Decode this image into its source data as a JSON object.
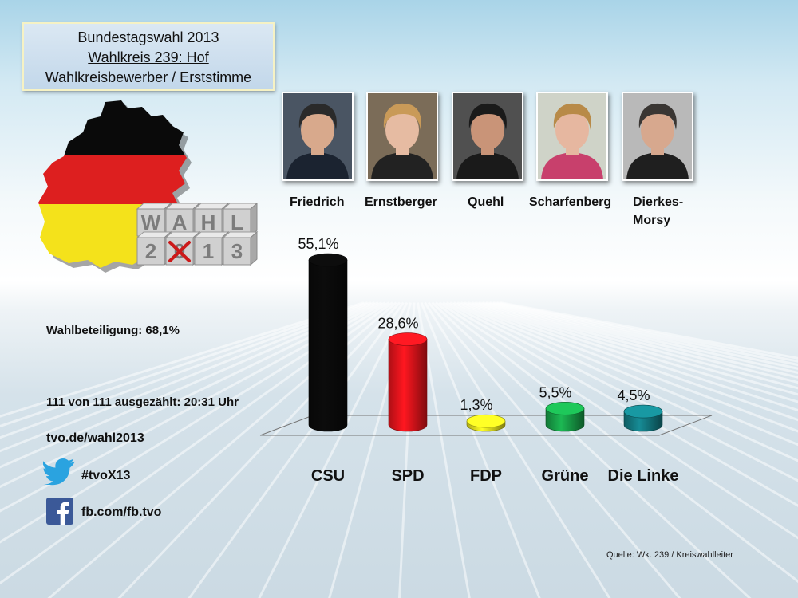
{
  "header": {
    "line1": "Bundestagswahl 2013",
    "line2": "Wahlkreis 239: Hof",
    "line3": "Wahlkreisbewerber  / Erststimme"
  },
  "logo": {
    "row1": [
      "W",
      "A",
      "H",
      "L"
    ],
    "row2": [
      "2",
      "0",
      "1",
      "3"
    ],
    "icon": "germany-map-flag-icon"
  },
  "candidates": [
    {
      "name": "Friedrich",
      "photo_bg": "#4a5563",
      "skin": "#d8a98c",
      "hair": "#2a2a2a",
      "shirt": "#1b2330"
    },
    {
      "name": "Ernstberger",
      "photo_bg": "#7b6c58",
      "skin": "#e6bba2",
      "hair": "#c99a58",
      "shirt": "#222222"
    },
    {
      "name": "Quehl",
      "photo_bg": "#505050",
      "skin": "#c99478",
      "hair": "#1a1a1a",
      "shirt": "#1a1a1a"
    },
    {
      "name": "Scharfenberg",
      "photo_bg": "#cfd3c8",
      "skin": "#e6b7a0",
      "hair": "#b88a48",
      "shirt": "#c8406c"
    },
    {
      "name": "Dierkes-Morsy",
      "name_lines": [
        "Dierkes-",
        "Morsy"
      ],
      "photo_bg": "#b9b9b9",
      "skin": "#d7a88e",
      "hair": "#3a3633",
      "shirt": "#1f1f1f"
    }
  ],
  "info": {
    "turnout": "Wahlbeteiligung: 68,1%",
    "counted": "111 von 111 ausgezählt: 20:31 Uhr",
    "website": "tvo.de/wahl2013",
    "twitter": "#tvoX13",
    "facebook": "fb.com/fb.tvo"
  },
  "source": "Quelle: Wk. 239 / Kreiswahlleiter",
  "chart_data": {
    "type": "bar",
    "categories": [
      "CSU",
      "SPD",
      "FDP",
      "Grüne",
      "Die Linke"
    ],
    "values": [
      55.1,
      28.6,
      1.3,
      5.5,
      4.5
    ],
    "value_labels": [
      "55,1%",
      "28,6%",
      "1,3%",
      "5,5%",
      "4,5%"
    ],
    "colors": [
      "#0a0a0a",
      "#e8141c",
      "#e6e21e",
      "#18a048",
      "#137a82"
    ],
    "ylim": [
      0,
      55.1
    ],
    "grid": false,
    "legend": "none"
  },
  "colors": {
    "flag_black": "#0a0a0a",
    "flag_red": "#dd1f1f",
    "flag_gold": "#f4e21b",
    "twitter": "#2aa3e0",
    "facebook": "#3b5998"
  }
}
